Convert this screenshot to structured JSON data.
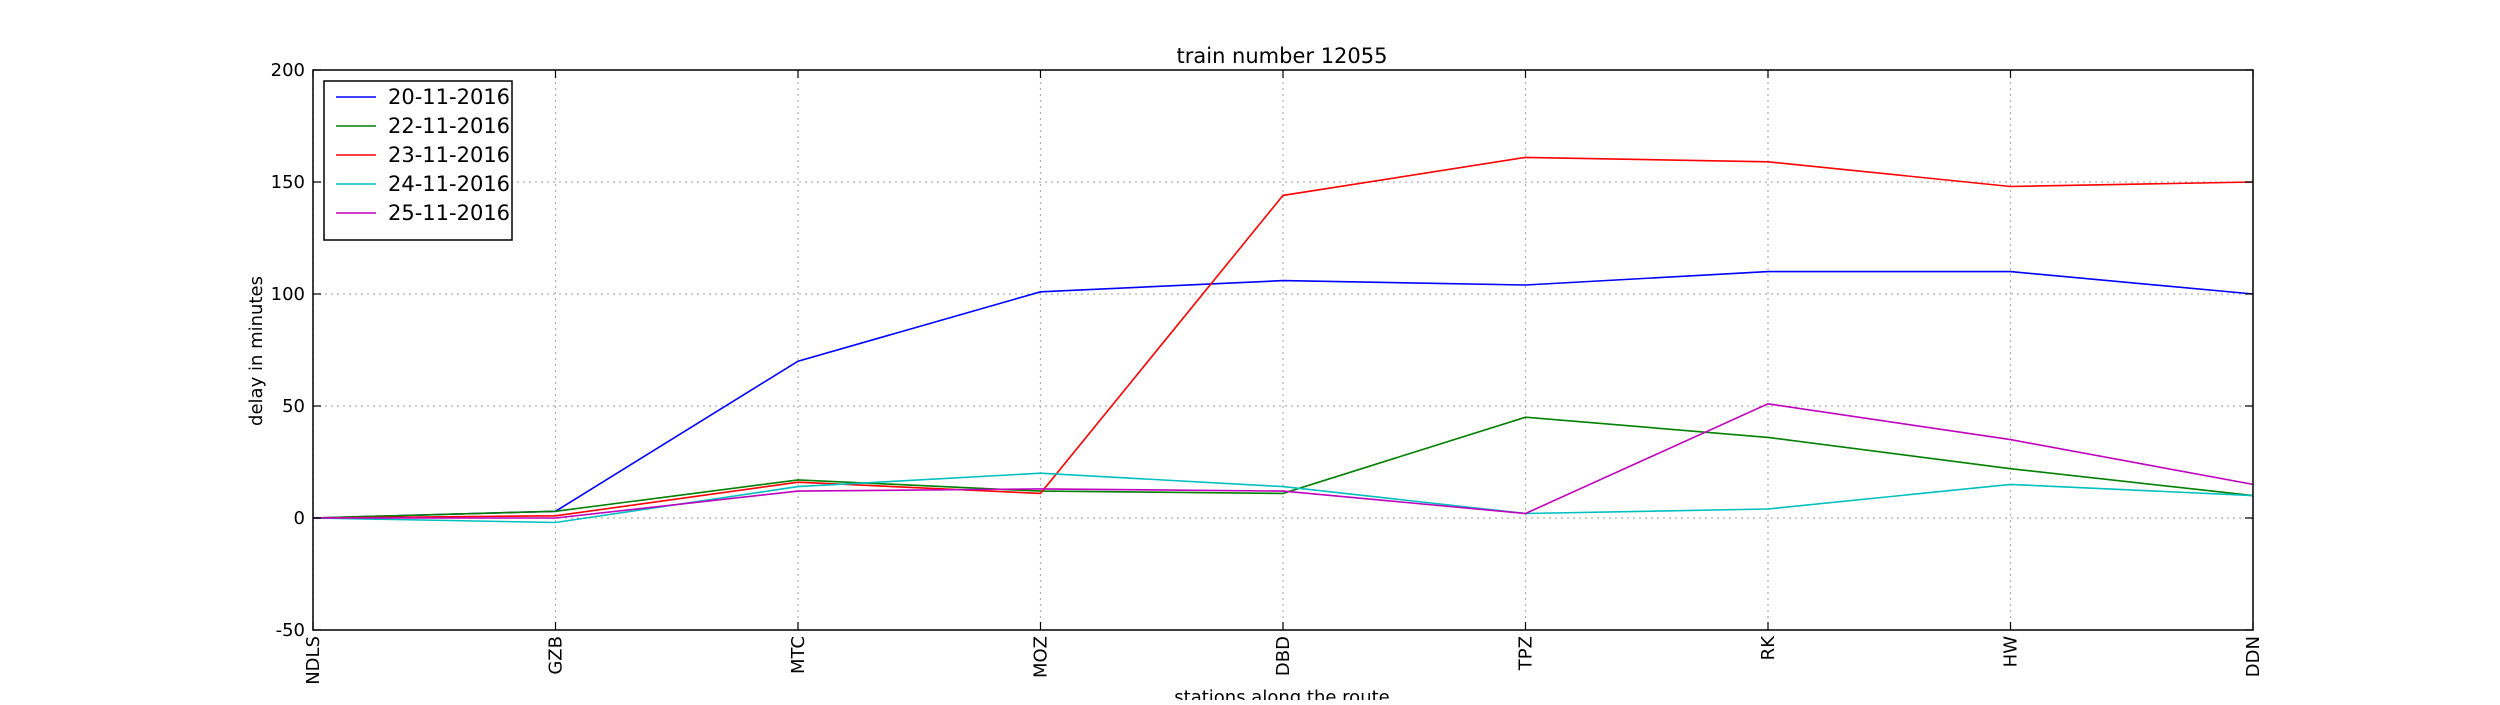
{
  "chart_data": {
    "type": "line",
    "title": "train number 12055",
    "xlabel": "stations along the route",
    "ylabel": "delay in minutes",
    "categories": [
      "NDLS",
      "GZB",
      "MTC",
      "MOZ",
      "DBD",
      "TPZ",
      "RK",
      "HW",
      "DDN"
    ],
    "ylim": [
      -50,
      200
    ],
    "yticks": [
      -50,
      0,
      50,
      100,
      150,
      200
    ],
    "grid": true,
    "legend_position": "top-left",
    "series": [
      {
        "name": "20-11-2016",
        "color": "#0000ff",
        "values": [
          0,
          3,
          70,
          101,
          106,
          104,
          110,
          110,
          100
        ]
      },
      {
        "name": "22-11-2016",
        "color": "#008000",
        "values": [
          0,
          3,
          17,
          12,
          11,
          45,
          36,
          22,
          10
        ]
      },
      {
        "name": "23-11-2016",
        "color": "#ff0000",
        "values": [
          0,
          1,
          16,
          11,
          144,
          161,
          159,
          148,
          150
        ]
      },
      {
        "name": "24-11-2016",
        "color": "#00bfbf",
        "values": [
          0,
          -2,
          14,
          20,
          14,
          2,
          4,
          15,
          10
        ]
      },
      {
        "name": "25-11-2016",
        "color": "#bf00bf",
        "values": [
          0,
          0,
          12,
          13,
          12,
          2,
          51,
          35,
          15
        ]
      }
    ]
  }
}
